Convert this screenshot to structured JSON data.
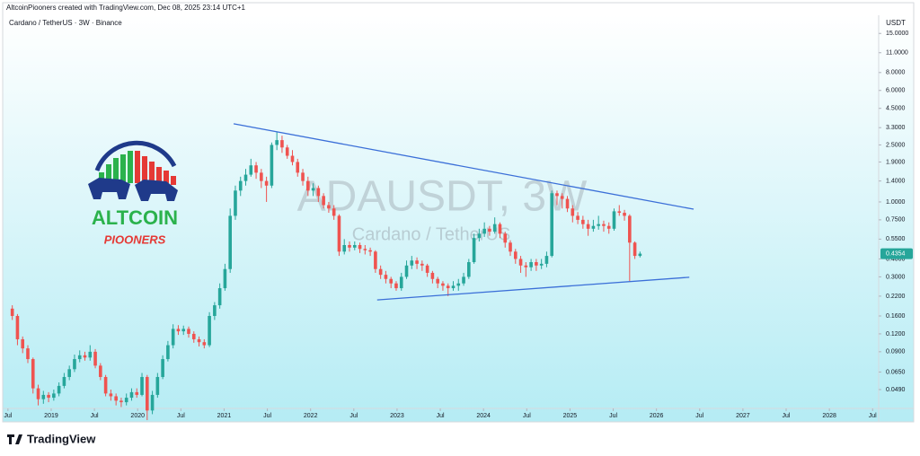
{
  "header": "AltcoinPiooners created with TradingView.com, Dec 08, 2025 23:14 UTC+1",
  "footer": "TradingView",
  "logo": {
    "title": "ALTCOIN",
    "subtitle": "PIOONERS"
  },
  "chart_data": {
    "type": "candlestick",
    "title": "Cardano / TetherUS · 3W · Binance",
    "watermark": "ADAUSDT, 3W",
    "watermark_subtitle": "Cardano / TetherUS",
    "y_unit": "USDT",
    "log_scale": true,
    "grid": false,
    "up_color": "#26a69a",
    "down_color": "#ef5350",
    "last_price": 0.4354,
    "last_price_label": "0.4354",
    "xlim": [
      2018.46,
      2028.57
    ],
    "xticks": [
      {
        "value": 2018.5,
        "label": "Jul"
      },
      {
        "value": 2019,
        "label": "2019"
      },
      {
        "value": 2019.5,
        "label": "Jul"
      },
      {
        "value": 2020,
        "label": "2020"
      },
      {
        "value": 2020.5,
        "label": "Jul"
      },
      {
        "value": 2021,
        "label": "2021"
      },
      {
        "value": 2021.5,
        "label": "Jul"
      },
      {
        "value": 2022,
        "label": "2022"
      },
      {
        "value": 2022.5,
        "label": "Jul"
      },
      {
        "value": 2023,
        "label": "2023"
      },
      {
        "value": 2023.5,
        "label": "Jul"
      },
      {
        "value": 2024,
        "label": "2024"
      },
      {
        "value": 2024.5,
        "label": "Jul"
      },
      {
        "value": 2025,
        "label": "2025"
      },
      {
        "value": 2025.5,
        "label": "Jul"
      },
      {
        "value": 2026,
        "label": "2026"
      },
      {
        "value": 2026.5,
        "label": "Jul"
      },
      {
        "value": 2027,
        "label": "2027"
      },
      {
        "value": 2027.5,
        "label": "Jul"
      },
      {
        "value": 2028,
        "label": "2028"
      },
      {
        "value": 2028.5,
        "label": "Jul"
      }
    ],
    "ylim": [
      0.0362,
      19.8
    ],
    "yticks": [
      {
        "value": 15,
        "label": "15.0000"
      },
      {
        "value": 11,
        "label": "11.0000"
      },
      {
        "value": 8,
        "label": "8.0000"
      },
      {
        "value": 6,
        "label": "6.0000"
      },
      {
        "value": 4.5,
        "label": "4.5000"
      },
      {
        "value": 3.3,
        "label": "3.3000"
      },
      {
        "value": 2.5,
        "label": "2.5000"
      },
      {
        "value": 1.9,
        "label": "1.9000"
      },
      {
        "value": 1.4,
        "label": "1.4000"
      },
      {
        "value": 1,
        "label": "1.0000"
      },
      {
        "value": 0.75,
        "label": "0.7500"
      },
      {
        "value": 0.55,
        "label": "0.5500"
      },
      {
        "value": 0.4,
        "label": "0.4000"
      },
      {
        "value": 0.3,
        "label": "0.3000"
      },
      {
        "value": 0.22,
        "label": "0.2200"
      },
      {
        "value": 0.16,
        "label": "0.1600"
      },
      {
        "value": 0.12,
        "label": "0.1200"
      },
      {
        "value": 0.09,
        "label": "0.0900"
      },
      {
        "value": 0.065,
        "label": "0.0650"
      },
      {
        "value": 0.049,
        "label": "0.0490"
      }
    ],
    "trendlines": [
      {
        "color": "#3b6fd8",
        "x": [
          2021.11,
          2026.43
        ],
        "y": [
          3.51,
          0.89
        ]
      },
      {
        "color": "#3b6fd8",
        "x": [
          2022.77,
          2026.38
        ],
        "y": [
          0.207,
          0.298
        ]
      }
    ],
    "x": [
      2018.55,
      2018.61,
      2018.67,
      2018.73,
      2018.79,
      2018.85,
      2018.91,
      2018.97,
      2019.03,
      2019.09,
      2019.15,
      2019.21,
      2019.27,
      2019.33,
      2019.39,
      2019.45,
      2019.51,
      2019.57,
      2019.63,
      2019.69,
      2019.75,
      2019.81,
      2019.87,
      2019.93,
      2019.99,
      2020.05,
      2020.11,
      2020.17,
      2020.23,
      2020.29,
      2020.35,
      2020.41,
      2020.47,
      2020.53,
      2020.59,
      2020.65,
      2020.71,
      2020.77,
      2020.83,
      2020.89,
      2020.95,
      2021.01,
      2021.07,
      2021.13,
      2021.19,
      2021.25,
      2021.31,
      2021.37,
      2021.43,
      2021.49,
      2021.55,
      2021.61,
      2021.67,
      2021.73,
      2021.79,
      2021.85,
      2021.91,
      2021.97,
      2022.03,
      2022.09,
      2022.15,
      2022.21,
      2022.27,
      2022.33,
      2022.39,
      2022.45,
      2022.51,
      2022.57,
      2022.63,
      2022.69,
      2022.75,
      2022.81,
      2022.87,
      2022.93,
      2022.99,
      2023.05,
      2023.11,
      2023.17,
      2023.23,
      2023.29,
      2023.35,
      2023.41,
      2023.47,
      2023.53,
      2023.59,
      2023.65,
      2023.71,
      2023.77,
      2023.83,
      2023.89,
      2023.95,
      2024.01,
      2024.07,
      2024.13,
      2024.19,
      2024.25,
      2024.31,
      2024.37,
      2024.43,
      2024.49,
      2024.55,
      2024.61,
      2024.67,
      2024.73,
      2024.79,
      2024.85,
      2024.91,
      2024.97,
      2025.03,
      2025.09,
      2025.15,
      2025.21,
      2025.27,
      2025.33,
      2025.39,
      2025.45,
      2025.51,
      2025.57,
      2025.63,
      2025.69,
      2025.75,
      2025.81
    ],
    "open": [
      0.18,
      0.16,
      0.11,
      0.095,
      0.08,
      0.05,
      0.042,
      0.045,
      0.043,
      0.046,
      0.052,
      0.06,
      0.068,
      0.08,
      0.085,
      0.082,
      0.09,
      0.072,
      0.06,
      0.046,
      0.044,
      0.041,
      0.04,
      0.043,
      0.047,
      0.045,
      0.06,
      0.035,
      0.045,
      0.06,
      0.08,
      0.1,
      0.13,
      0.125,
      0.13,
      0.12,
      0.11,
      0.105,
      0.1,
      0.16,
      0.19,
      0.25,
      0.34,
      0.8,
      1.2,
      1.4,
      1.55,
      1.8,
      1.6,
      1.4,
      1.3,
      2.5,
      2.7,
      2.4,
      2.1,
      1.9,
      1.6,
      1.4,
      1.2,
      1.25,
      1.1,
      0.95,
      0.9,
      0.8,
      0.45,
      0.5,
      0.48,
      0.5,
      0.47,
      0.46,
      0.45,
      0.34,
      0.31,
      0.29,
      0.27,
      0.25,
      0.3,
      0.36,
      0.39,
      0.37,
      0.36,
      0.32,
      0.29,
      0.27,
      0.26,
      0.25,
      0.26,
      0.27,
      0.3,
      0.38,
      0.56,
      0.6,
      0.65,
      0.62,
      0.7,
      0.6,
      0.52,
      0.45,
      0.4,
      0.36,
      0.35,
      0.38,
      0.36,
      0.37,
      0.42,
      1.15,
      1.1,
      1.05,
      0.9,
      0.8,
      0.75,
      0.7,
      0.65,
      0.68,
      0.7,
      0.68,
      0.65,
      0.86,
      0.84,
      0.8,
      0.52,
      0.42
    ],
    "high": [
      0.19,
      0.165,
      0.115,
      0.1,
      0.082,
      0.053,
      0.048,
      0.047,
      0.049,
      0.055,
      0.064,
      0.072,
      0.086,
      0.092,
      0.09,
      0.1,
      0.094,
      0.075,
      0.062,
      0.049,
      0.046,
      0.043,
      0.046,
      0.05,
      0.05,
      0.064,
      0.062,
      0.048,
      0.064,
      0.085,
      0.107,
      0.14,
      0.138,
      0.137,
      0.135,
      0.125,
      0.115,
      0.11,
      0.17,
      0.2,
      0.27,
      0.37,
      0.9,
      1.3,
      1.5,
      1.7,
      2.0,
      1.9,
      1.7,
      1.5,
      2.6,
      3.1,
      2.9,
      2.5,
      2.3,
      2.0,
      1.7,
      1.5,
      1.35,
      1.3,
      1.15,
      1.0,
      0.95,
      0.82,
      0.55,
      0.53,
      0.53,
      0.52,
      0.5,
      0.48,
      0.46,
      0.36,
      0.33,
      0.3,
      0.28,
      0.32,
      0.39,
      0.42,
      0.41,
      0.39,
      0.37,
      0.33,
      0.3,
      0.28,
      0.27,
      0.28,
      0.29,
      0.32,
      0.4,
      0.6,
      0.65,
      0.72,
      0.68,
      0.78,
      0.72,
      0.62,
      0.54,
      0.47,
      0.42,
      0.38,
      0.4,
      0.4,
      0.4,
      0.45,
      1.2,
      1.2,
      1.15,
      1.1,
      0.95,
      0.85,
      0.8,
      0.75,
      0.75,
      0.8,
      0.74,
      0.72,
      0.9,
      0.95,
      0.88,
      0.82,
      0.53,
      0.45
    ],
    "low": [
      0.15,
      0.1,
      0.088,
      0.075,
      0.046,
      0.038,
      0.039,
      0.04,
      0.041,
      0.044,
      0.05,
      0.057,
      0.065,
      0.076,
      0.078,
      0.078,
      0.069,
      0.057,
      0.044,
      0.041,
      0.038,
      0.037,
      0.038,
      0.041,
      0.043,
      0.044,
      0.03,
      0.033,
      0.043,
      0.058,
      0.077,
      0.095,
      0.118,
      0.118,
      0.113,
      0.104,
      0.098,
      0.095,
      0.097,
      0.15,
      0.18,
      0.24,
      0.32,
      0.75,
      1.1,
      1.3,
      1.5,
      1.45,
      1.25,
      1.0,
      1.25,
      2.3,
      2.2,
      2.0,
      1.8,
      1.5,
      1.3,
      1.1,
      1.1,
      1.0,
      0.9,
      0.84,
      0.75,
      0.42,
      0.43,
      0.45,
      0.46,
      0.44,
      0.43,
      0.42,
      0.32,
      0.29,
      0.27,
      0.25,
      0.24,
      0.24,
      0.29,
      0.34,
      0.34,
      0.33,
      0.3,
      0.27,
      0.25,
      0.24,
      0.22,
      0.24,
      0.24,
      0.26,
      0.29,
      0.37,
      0.53,
      0.57,
      0.58,
      0.6,
      0.56,
      0.48,
      0.42,
      0.37,
      0.32,
      0.3,
      0.33,
      0.33,
      0.34,
      0.35,
      0.41,
      0.95,
      0.9,
      0.85,
      0.72,
      0.7,
      0.65,
      0.58,
      0.62,
      0.64,
      0.62,
      0.6,
      0.63,
      0.8,
      0.74,
      0.28,
      0.4,
      0.41
    ],
    "close": [
      0.16,
      0.11,
      0.095,
      0.08,
      0.05,
      0.042,
      0.045,
      0.043,
      0.046,
      0.052,
      0.06,
      0.068,
      0.08,
      0.085,
      0.082,
      0.09,
      0.072,
      0.06,
      0.046,
      0.044,
      0.041,
      0.04,
      0.043,
      0.047,
      0.045,
      0.06,
      0.035,
      0.045,
      0.06,
      0.08,
      0.1,
      0.13,
      0.125,
      0.13,
      0.12,
      0.11,
      0.105,
      0.1,
      0.16,
      0.19,
      0.25,
      0.34,
      0.8,
      1.2,
      1.4,
      1.55,
      1.8,
      1.6,
      1.4,
      1.3,
      2.5,
      2.7,
      2.4,
      2.1,
      1.9,
      1.6,
      1.4,
      1.2,
      1.25,
      1.1,
      0.95,
      0.9,
      0.8,
      0.45,
      0.5,
      0.48,
      0.5,
      0.47,
      0.46,
      0.45,
      0.34,
      0.31,
      0.29,
      0.27,
      0.25,
      0.3,
      0.36,
      0.39,
      0.37,
      0.36,
      0.32,
      0.29,
      0.27,
      0.26,
      0.25,
      0.26,
      0.27,
      0.3,
      0.38,
      0.56,
      0.6,
      0.65,
      0.62,
      0.7,
      0.6,
      0.52,
      0.45,
      0.4,
      0.36,
      0.35,
      0.38,
      0.36,
      0.37,
      0.42,
      1.15,
      1.1,
      1.05,
      0.9,
      0.8,
      0.75,
      0.7,
      0.65,
      0.68,
      0.7,
      0.68,
      0.65,
      0.86,
      0.84,
      0.8,
      0.52,
      0.42,
      0.4354
    ]
  }
}
